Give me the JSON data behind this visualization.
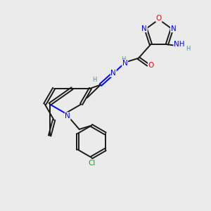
{
  "background_color": "#ebebeb",
  "colors": {
    "C": "#1a1a1a",
    "N": "#0000ff",
    "O": "#ff0000",
    "Cl": "#00aa00",
    "H": "#4a9090"
  },
  "lw": 1.4,
  "fs": 7.5
}
